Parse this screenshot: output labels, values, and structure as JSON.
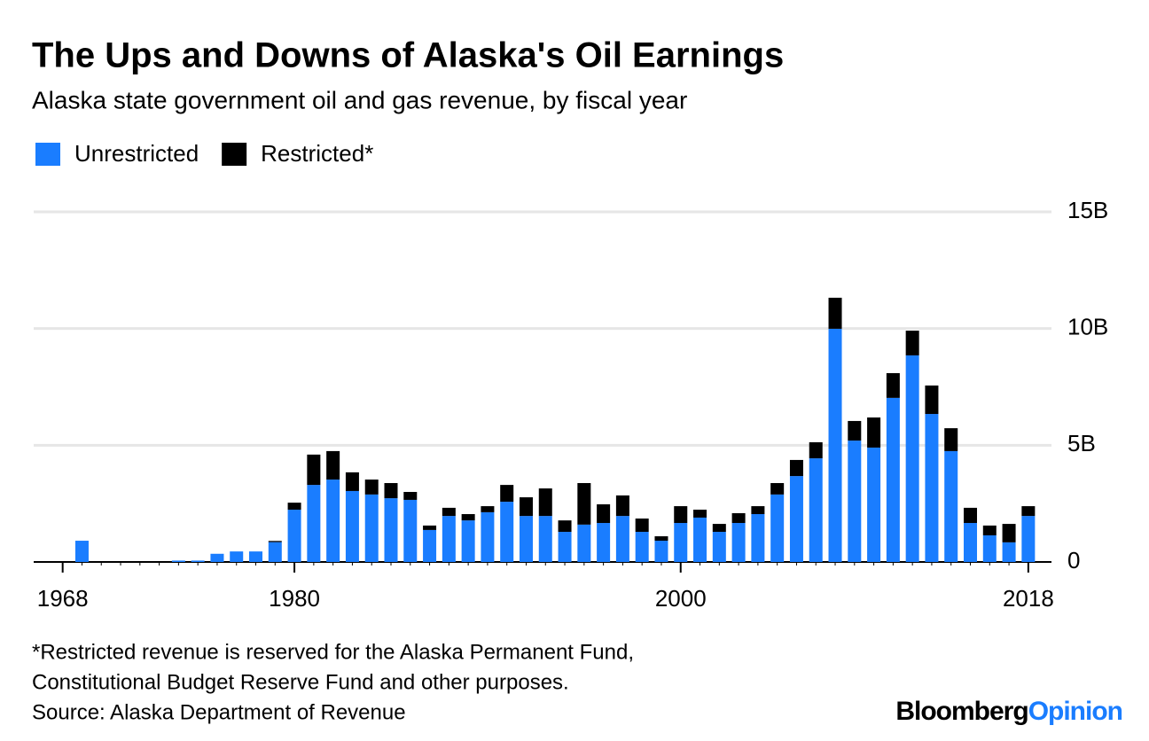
{
  "chart_data": {
    "type": "stacked_bar",
    "title": "The Ups and Downs of Alaska's Oil Earnings",
    "subtitle": "Alaska state government oil and gas revenue, by fiscal year",
    "x": [
      1968,
      1969,
      1970,
      1971,
      1972,
      1973,
      1974,
      1975,
      1976,
      1977,
      1978,
      1979,
      1980,
      1981,
      1982,
      1983,
      1984,
      1985,
      1986,
      1987,
      1988,
      1989,
      1990,
      1991,
      1992,
      1993,
      1994,
      1995,
      1996,
      1997,
      1998,
      1999,
      2000,
      2001,
      2002,
      2003,
      2004,
      2005,
      2006,
      2007,
      2008,
      2009,
      2010,
      2011,
      2012,
      2013,
      2014,
      2015,
      2016,
      2017,
      2018
    ],
    "series": [
      {
        "name": "Unrestricted",
        "color": "#1a7dff",
        "values": [
          0,
          0.91,
          0,
          0,
          0,
          0,
          0.06,
          0.06,
          0.35,
          0.45,
          0.45,
          0.85,
          2.24,
          3.3,
          3.53,
          3.04,
          2.89,
          2.73,
          2.66,
          1.37,
          1.97,
          1.78,
          2.13,
          2.58,
          1.97,
          1.97,
          1.29,
          1.6,
          1.67,
          1.97,
          1.29,
          0.91,
          1.67,
          1.9,
          1.29,
          1.67,
          2.05,
          2.89,
          3.68,
          4.44,
          9.99,
          5.2,
          4.9,
          7.03,
          8.85,
          6.34,
          4.75,
          1.67,
          1.14,
          0.84,
          1.97
        ]
      },
      {
        "name": "Restricted*",
        "color": "#000000",
        "values": [
          0,
          0,
          0,
          0,
          0,
          0,
          0,
          0,
          0,
          0,
          0,
          0.05,
          0.3,
          1.3,
          1.22,
          0.8,
          0.64,
          0.65,
          0.34,
          0.19,
          0.35,
          0.27,
          0.26,
          0.72,
          0.8,
          1.18,
          0.49,
          1.78,
          0.8,
          0.88,
          0.57,
          0.19,
          0.72,
          0.34,
          0.34,
          0.42,
          0.34,
          0.49,
          0.69,
          0.69,
          1.33,
          0.84,
          1.29,
          1.06,
          1.06,
          1.22,
          0.98,
          0.65,
          0.42,
          0.79,
          0.42
        ]
      }
    ],
    "xlim": [
      1966.5,
      2019.2
    ],
    "xticks": [
      1968,
      1980,
      2000,
      2018
    ],
    "ylim": [
      0,
      15
    ],
    "yticks": [
      {
        "value": 0,
        "label": "0"
      },
      {
        "value": 5,
        "label": "5B"
      },
      {
        "value": 10,
        "label": "10B"
      },
      {
        "value": 15,
        "label": "15B"
      }
    ],
    "grid": true,
    "footnote": [
      "*Restricted revenue is reserved for the Alaska Permanent Fund,",
      "Constitutional Budget Reserve Fund and other purposes."
    ],
    "source": "Source: Alaska Department of Revenue",
    "brand": [
      "Bloomberg",
      "Opinion"
    ]
  }
}
